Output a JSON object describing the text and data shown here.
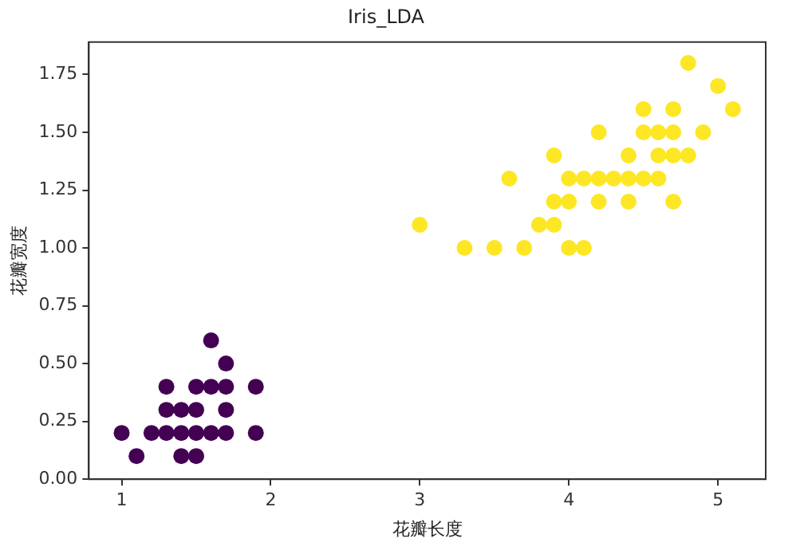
{
  "chart_data": {
    "type": "scatter",
    "title": "Iris_LDA",
    "xlabel": "花瓣长度",
    "ylabel": "花瓣宽度",
    "xlim": [
      0.78,
      5.32
    ],
    "ylim": [
      0,
      1.89
    ],
    "xticks": [
      1,
      2,
      3,
      4,
      5
    ],
    "yticks": [
      {
        "value": 0,
        "label": "0.00"
      },
      {
        "value": 0.25,
        "label": "0.25"
      },
      {
        "value": 0.5,
        "label": "0.50"
      },
      {
        "value": 0.75,
        "label": "0.75"
      },
      {
        "value": 1,
        "label": "1.00"
      },
      {
        "value": 1.25,
        "label": "1.25"
      },
      {
        "value": 1.5,
        "label": "1.50"
      },
      {
        "value": 1.75,
        "label": "1.75"
      }
    ],
    "grid": false,
    "legend": false,
    "marker": "circle",
    "series": [
      {
        "color": "#440154",
        "x": [
          1.1,
          1.4,
          1.5,
          1.0,
          1.2,
          1.3,
          1.4,
          1.5,
          1.6,
          1.7,
          1.9,
          1.3,
          1.4,
          1.5,
          1.7,
          1.3,
          1.5,
          1.6,
          1.7,
          1.9,
          1.7,
          1.6
        ],
        "values": [
          0.1,
          0.1,
          0.1,
          0.2,
          0.2,
          0.2,
          0.2,
          0.2,
          0.2,
          0.2,
          0.2,
          0.3,
          0.3,
          0.3,
          0.3,
          0.4,
          0.4,
          0.4,
          0.4,
          0.4,
          0.5,
          0.6
        ]
      },
      {
        "color": "#fde725",
        "x": [
          3.3,
          3.5,
          3.7,
          4.0,
          4.1,
          3.0,
          3.8,
          3.9,
          3.9,
          4.0,
          4.2,
          4.4,
          4.7,
          3.6,
          4.0,
          4.1,
          4.2,
          4.3,
          4.4,
          4.5,
          4.6,
          3.9,
          4.4,
          4.6,
          4.7,
          4.8,
          4.2,
          4.5,
          4.6,
          4.7,
          4.9,
          4.5,
          4.7,
          5.1,
          5.0,
          4.8
        ],
        "values": [
          1.0,
          1.0,
          1.0,
          1.0,
          1.0,
          1.1,
          1.1,
          1.1,
          1.2,
          1.2,
          1.2,
          1.2,
          1.2,
          1.3,
          1.3,
          1.3,
          1.3,
          1.3,
          1.3,
          1.3,
          1.3,
          1.4,
          1.4,
          1.4,
          1.4,
          1.4,
          1.5,
          1.5,
          1.5,
          1.5,
          1.5,
          1.6,
          1.6,
          1.6,
          1.7,
          1.8
        ]
      }
    ]
  }
}
